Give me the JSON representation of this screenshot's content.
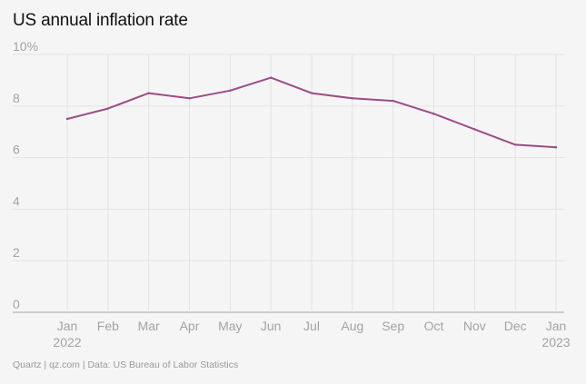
{
  "title": "US annual inflation rate",
  "footer": "Quartz | qz.com | Data: US Bureau of Labor Statistics",
  "chart_data": {
    "type": "line",
    "title": "US annual inflation rate",
    "xlabel": "",
    "ylabel": "",
    "categories": [
      "Jan",
      "Feb",
      "Mar",
      "Apr",
      "May",
      "Jun",
      "Jul",
      "Aug",
      "Sep",
      "Oct",
      "Nov",
      "Dec",
      "Jan"
    ],
    "year_labels": [
      {
        "index": 0,
        "label": "2022"
      },
      {
        "index": 12,
        "label": "2023"
      }
    ],
    "series": [
      {
        "values": [
          7.5,
          7.9,
          8.5,
          8.3,
          8.6,
          9.1,
          8.5,
          8.3,
          8.2,
          7.7,
          7.1,
          6.5,
          6.4
        ],
        "color": "#9b4d86"
      }
    ],
    "y_ticks": [
      "0",
      "2",
      "4",
      "6",
      "8",
      "10%"
    ],
    "y_tick_values": [
      0,
      2,
      4,
      6,
      8,
      10
    ],
    "ylim": [
      0,
      10
    ],
    "grid": true,
    "legend": "none"
  }
}
